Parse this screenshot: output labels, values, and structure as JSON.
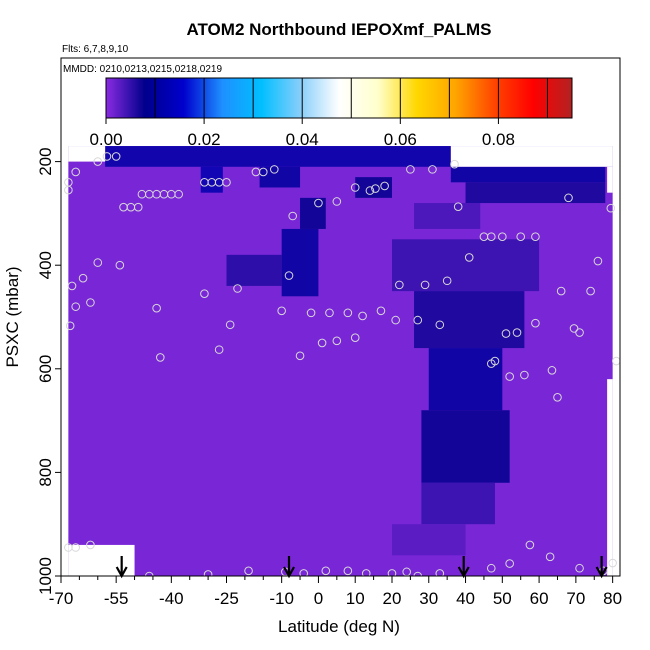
{
  "chart_data": {
    "type": "heatmap",
    "title": "ATOM2 Northbound IEPOXmf_PALMS",
    "subtitle_flights": "Flts: 6,7,8,9,10",
    "subtitle_dates": "MMDD: 0210,0213,0215,0218,0219",
    "xlabel": "Latitude (deg N)",
    "ylabel": "PSXC (mbar)",
    "xlim": [
      -70,
      82
    ],
    "ylim": [
      1000,
      0
    ],
    "x_ticks": [
      -70,
      -55,
      -40,
      -25,
      -10,
      0,
      10,
      20,
      30,
      40,
      50,
      60,
      70,
      80
    ],
    "x_tick_labels": [
      "-70",
      "-55",
      "-40",
      "-25",
      "-10",
      "0",
      "10",
      "20",
      "30",
      "40",
      "50",
      "60",
      "70",
      "80"
    ],
    "x_minor_ticks": [
      -65,
      -60,
      -50,
      -45,
      -35,
      -30,
      -20,
      -15,
      -5,
      5,
      15,
      25,
      35,
      45,
      55,
      65,
      75
    ],
    "y_ticks": [
      200,
      400,
      600,
      800,
      1000
    ],
    "y_tick_labels": [
      "200",
      "400",
      "600",
      "800",
      "1000"
    ],
    "colorbar": {
      "min": 0.0,
      "max": 0.095,
      "ticks": [
        0.0,
        0.02,
        0.04,
        0.06,
        0.08
      ],
      "tick_labels": [
        "0.00",
        "0.02",
        "0.04",
        "0.06",
        "0.08"
      ],
      "colors": [
        "#8a2be2",
        "#00008b",
        "#0000cd",
        "#1e90ff",
        "#00bfff",
        "#87cefa",
        "#ffffff",
        "#ffffcc",
        "#ffd700",
        "#ffa500",
        "#ff4500",
        "#ff0000",
        "#b22222"
      ]
    },
    "base_value": 0.001,
    "background_color": "#8a2be2",
    "data_region": {
      "lat": [
        -68,
        80
      ],
      "p_top": 170,
      "p_bottom": 1000
    },
    "fill_gaps": [
      {
        "lat": [
          -68,
          -50
        ],
        "p": [
          940,
          1000
        ],
        "color": "#ffffff"
      },
      {
        "lat": [
          -68,
          -58
        ],
        "p": [
          170,
          200
        ],
        "color": "#ffffff"
      },
      {
        "lat": [
          36,
          80
        ],
        "p": [
          170,
          210
        ],
        "color": "#ffffff"
      },
      {
        "lat": [
          78.5,
          80
        ],
        "p": [
          210,
          260
        ],
        "color": "#ffffff"
      },
      {
        "lat": [
          78.5,
          80
        ],
        "p": [
          620,
          1000
        ],
        "color": "#ffffff"
      }
    ],
    "enhanced_regions": [
      {
        "lat": [
          -58,
          36
        ],
        "p": [
          170,
          210
        ],
        "value": 0.011
      },
      {
        "lat": [
          36,
          78
        ],
        "p": [
          210,
          240
        ],
        "value": 0.01
      },
      {
        "lat": [
          40,
          78
        ],
        "p": [
          240,
          280
        ],
        "value": 0.007
      },
      {
        "lat": [
          -32,
          -26
        ],
        "p": [
          210,
          260
        ],
        "value": 0.012
      },
      {
        "lat": [
          -16,
          -5
        ],
        "p": [
          210,
          250
        ],
        "value": 0.01
      },
      {
        "lat": [
          -5,
          2
        ],
        "p": [
          270,
          330
        ],
        "value": 0.008
      },
      {
        "lat": [
          -10,
          0
        ],
        "p": [
          330,
          460
        ],
        "value": 0.01
      },
      {
        "lat": [
          -25,
          -10
        ],
        "p": [
          380,
          440
        ],
        "value": 0.006
      },
      {
        "lat": [
          10,
          20
        ],
        "p": [
          230,
          270
        ],
        "value": 0.008
      },
      {
        "lat": [
          26,
          44
        ],
        "p": [
          280,
          330
        ],
        "value": 0.004
      },
      {
        "lat": [
          20,
          60
        ],
        "p": [
          350,
          450
        ],
        "value": 0.005
      },
      {
        "lat": [
          26,
          56
        ],
        "p": [
          450,
          560
        ],
        "value": 0.007
      },
      {
        "lat": [
          30,
          50
        ],
        "p": [
          560,
          680
        ],
        "value": 0.01
      },
      {
        "lat": [
          28,
          52
        ],
        "p": [
          680,
          820
        ],
        "value": 0.008
      },
      {
        "lat": [
          28,
          48
        ],
        "p": [
          820,
          900
        ],
        "value": 0.005
      },
      {
        "lat": [
          20,
          40
        ],
        "p": [
          900,
          960
        ],
        "value": 0.003
      }
    ],
    "observations": [
      {
        "lat": -57.5,
        "p": 190
      },
      {
        "lat": -55.0,
        "p": 190
      },
      {
        "lat": -60.0,
        "p": 200
      },
      {
        "lat": -66.0,
        "p": 220
      },
      {
        "lat": -68.0,
        "p": 240
      },
      {
        "lat": -68.0,
        "p": 255
      },
      {
        "lat": -48.0,
        "p": 263
      },
      {
        "lat": -46.0,
        "p": 263
      },
      {
        "lat": -44.0,
        "p": 263
      },
      {
        "lat": -42.0,
        "p": 263
      },
      {
        "lat": -40.0,
        "p": 263
      },
      {
        "lat": -38.0,
        "p": 263
      },
      {
        "lat": -31.0,
        "p": 240
      },
      {
        "lat": -29.0,
        "p": 240
      },
      {
        "lat": -27.0,
        "p": 240
      },
      {
        "lat": -25.0,
        "p": 240
      },
      {
        "lat": -17.0,
        "p": 220
      },
      {
        "lat": -15.0,
        "p": 220
      },
      {
        "lat": -12.0,
        "p": 215
      },
      {
        "lat": -53.0,
        "p": 288
      },
      {
        "lat": -51.0,
        "p": 288
      },
      {
        "lat": -49.0,
        "p": 288
      },
      {
        "lat": -7.0,
        "p": 305
      },
      {
        "lat": 0.0,
        "p": 280
      },
      {
        "lat": 5.0,
        "p": 277
      },
      {
        "lat": 10.0,
        "p": 250
      },
      {
        "lat": 14.0,
        "p": 256
      },
      {
        "lat": 15.5,
        "p": 252
      },
      {
        "lat": 18.0,
        "p": 247
      },
      {
        "lat": 25.0,
        "p": 215
      },
      {
        "lat": 31.0,
        "p": 215
      },
      {
        "lat": 37.0,
        "p": 205
      },
      {
        "lat": 38.0,
        "p": 287
      },
      {
        "lat": 45.0,
        "p": 345
      },
      {
        "lat": 47.0,
        "p": 345
      },
      {
        "lat": 50.0,
        "p": 345
      },
      {
        "lat": 55.0,
        "p": 345
      },
      {
        "lat": 59.0,
        "p": 345
      },
      {
        "lat": 68.0,
        "p": 270
      },
      {
        "lat": 79.5,
        "p": 290
      },
      {
        "lat": 41.0,
        "p": 385
      },
      {
        "lat": -60.0,
        "p": 395
      },
      {
        "lat": -64.0,
        "p": 425
      },
      {
        "lat": -67.0,
        "p": 440
      },
      {
        "lat": -54.0,
        "p": 400
      },
      {
        "lat": -8.0,
        "p": 420
      },
      {
        "lat": -66.0,
        "p": 480
      },
      {
        "lat": -62.0,
        "p": 472
      },
      {
        "lat": -44.0,
        "p": 483
      },
      {
        "lat": -31.0,
        "p": 455
      },
      {
        "lat": -22.0,
        "p": 445
      },
      {
        "lat": -10.0,
        "p": 488
      },
      {
        "lat": -2.0,
        "p": 492
      },
      {
        "lat": 3.0,
        "p": 492
      },
      {
        "lat": 8.0,
        "p": 492
      },
      {
        "lat": 12.0,
        "p": 498
      },
      {
        "lat": 17.0,
        "p": 488
      },
      {
        "lat": 22.0,
        "p": 438
      },
      {
        "lat": 29.0,
        "p": 438
      },
      {
        "lat": 35.0,
        "p": 430
      },
      {
        "lat": 21.0,
        "p": 506
      },
      {
        "lat": 27.0,
        "p": 506
      },
      {
        "lat": 33.0,
        "p": 515
      },
      {
        "lat": 54.0,
        "p": 530
      },
      {
        "lat": 51.0,
        "p": 532
      },
      {
        "lat": 59.0,
        "p": 512
      },
      {
        "lat": 66.0,
        "p": 450
      },
      {
        "lat": 74.0,
        "p": 450
      },
      {
        "lat": 76.0,
        "p": 392
      },
      {
        "lat": -67.5,
        "p": 517
      },
      {
        "lat": -24.0,
        "p": 515
      },
      {
        "lat": -27.0,
        "p": 563
      },
      {
        "lat": 1.0,
        "p": 550
      },
      {
        "lat": 5.0,
        "p": 546
      },
      {
        "lat": 10.0,
        "p": 540
      },
      {
        "lat": 69.5,
        "p": 522
      },
      {
        "lat": 71.0,
        "p": 530
      },
      {
        "lat": -43.0,
        "p": 578
      },
      {
        "lat": -5.0,
        "p": 575
      },
      {
        "lat": 47.0,
        "p": 590
      },
      {
        "lat": 48.0,
        "p": 585
      },
      {
        "lat": 52.0,
        "p": 615
      },
      {
        "lat": 56.0,
        "p": 612
      },
      {
        "lat": 63.5,
        "p": 603
      },
      {
        "lat": 81.0,
        "p": 585
      },
      {
        "lat": 65.0,
        "p": 655
      },
      {
        "lat": -68.0,
        "p": 945
      },
      {
        "lat": -66.0,
        "p": 945
      },
      {
        "lat": -62.0,
        "p": 940
      },
      {
        "lat": 57.5,
        "p": 940
      },
      {
        "lat": 63.0,
        "p": 963
      },
      {
        "lat": 80.0,
        "p": 975
      },
      {
        "lat": 52.0,
        "p": 976
      },
      {
        "lat": 47.0,
        "p": 985
      },
      {
        "lat": 71.0,
        "p": 985
      },
      {
        "lat": 77.5,
        "p": 990
      },
      {
        "lat": -30.0,
        "p": 997
      },
      {
        "lat": -19.0,
        "p": 990
      },
      {
        "lat": -9.0,
        "p": 992
      },
      {
        "lat": -4.0,
        "p": 995
      },
      {
        "lat": 2.0,
        "p": 990
      },
      {
        "lat": 8.0,
        "p": 990
      },
      {
        "lat": 13.0,
        "p": 995
      },
      {
        "lat": 20.0,
        "p": 995
      },
      {
        "lat": 24.0,
        "p": 992
      },
      {
        "lat": 27.0,
        "p": 1000
      },
      {
        "lat": 33.0,
        "p": 995
      },
      {
        "lat": -46.0,
        "p": 1000
      }
    ],
    "arrows": [
      {
        "lat": -53.5
      },
      {
        "lat": -8.0
      },
      {
        "lat": 39.5
      },
      {
        "lat": 77.0
      }
    ]
  }
}
